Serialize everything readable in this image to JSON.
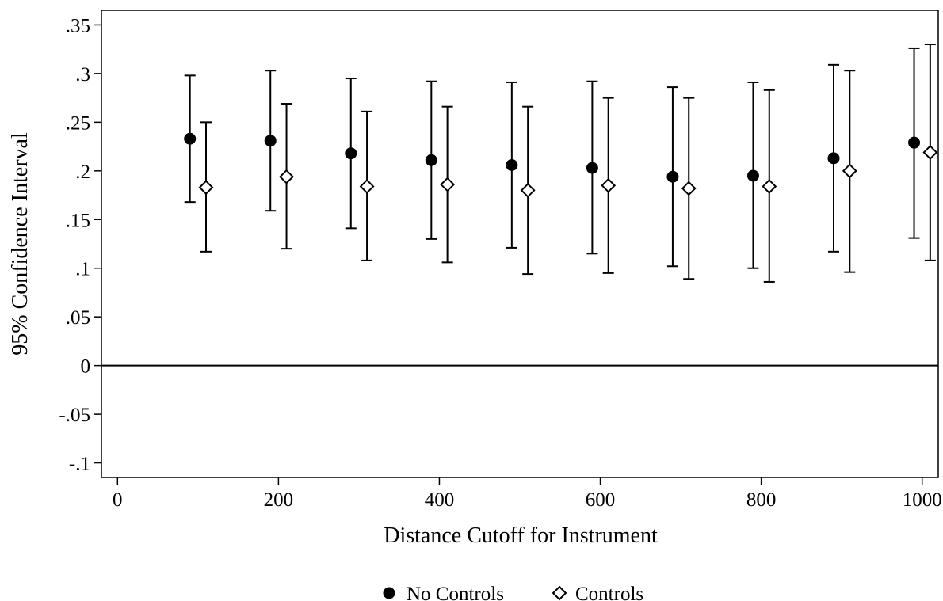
{
  "chart_data": {
    "type": "scatter",
    "title": "",
    "xlabel": "Distance Cutoff for Instrument",
    "ylabel": "95% Confidence Interval",
    "xlim": [
      -20,
      1020
    ],
    "ylim": [
      -0.115,
      0.365
    ],
    "x_ticks": [
      {
        "value": 0,
        "label": "0"
      },
      {
        "value": 200,
        "label": "200"
      },
      {
        "value": 400,
        "label": "400"
      },
      {
        "value": 600,
        "label": "600"
      },
      {
        "value": 800,
        "label": "800"
      },
      {
        "value": 1000,
        "label": "1000"
      }
    ],
    "y_ticks": [
      {
        "value": -0.1,
        "label": "-.1"
      },
      {
        "value": -0.05,
        "label": "-.05"
      },
      {
        "value": 0,
        "label": "0"
      },
      {
        "value": 0.05,
        "label": ".05"
      },
      {
        "value": 0.1,
        "label": ".1"
      },
      {
        "value": 0.15,
        "label": ".15"
      },
      {
        "value": 0.2,
        "label": ".2"
      },
      {
        "value": 0.25,
        "label": ".25"
      },
      {
        "value": 0.3,
        "label": ".3"
      },
      {
        "value": 0.35,
        "label": ".35"
      }
    ],
    "reference_line_y": 0,
    "grid": false,
    "legend_position": "bottom",
    "series": [
      {
        "name": "No Controls",
        "marker": "filled-circle",
        "points": [
          {
            "x": 90,
            "y": 0.233,
            "lo": 0.168,
            "hi": 0.298
          },
          {
            "x": 190,
            "y": 0.231,
            "lo": 0.159,
            "hi": 0.303
          },
          {
            "x": 290,
            "y": 0.218,
            "lo": 0.141,
            "hi": 0.295
          },
          {
            "x": 390,
            "y": 0.211,
            "lo": 0.13,
            "hi": 0.292
          },
          {
            "x": 490,
            "y": 0.206,
            "lo": 0.121,
            "hi": 0.291
          },
          {
            "x": 590,
            "y": 0.203,
            "lo": 0.115,
            "hi": 0.292
          },
          {
            "x": 690,
            "y": 0.194,
            "lo": 0.102,
            "hi": 0.286
          },
          {
            "x": 790,
            "y": 0.195,
            "lo": 0.1,
            "hi": 0.291
          },
          {
            "x": 890,
            "y": 0.213,
            "lo": 0.117,
            "hi": 0.309
          },
          {
            "x": 990,
            "y": 0.229,
            "lo": 0.131,
            "hi": 0.326
          }
        ]
      },
      {
        "name": "Controls",
        "marker": "hollow-diamond",
        "points": [
          {
            "x": 110,
            "y": 0.183,
            "lo": 0.117,
            "hi": 0.25
          },
          {
            "x": 210,
            "y": 0.194,
            "lo": 0.12,
            "hi": 0.269
          },
          {
            "x": 310,
            "y": 0.184,
            "lo": 0.108,
            "hi": 0.261
          },
          {
            "x": 410,
            "y": 0.186,
            "lo": 0.106,
            "hi": 0.266
          },
          {
            "x": 510,
            "y": 0.18,
            "lo": 0.094,
            "hi": 0.266
          },
          {
            "x": 610,
            "y": 0.185,
            "lo": 0.095,
            "hi": 0.275
          },
          {
            "x": 710,
            "y": 0.182,
            "lo": 0.089,
            "hi": 0.275
          },
          {
            "x": 810,
            "y": 0.184,
            "lo": 0.086,
            "hi": 0.283
          },
          {
            "x": 910,
            "y": 0.2,
            "lo": 0.096,
            "hi": 0.303
          },
          {
            "x": 1010,
            "y": 0.219,
            "lo": 0.108,
            "hi": 0.33
          }
        ]
      }
    ]
  },
  "colors": {
    "ink": "#000000",
    "plot_border": "#000000",
    "background": "#ffffff",
    "hollow_fill": "#ffffff"
  }
}
